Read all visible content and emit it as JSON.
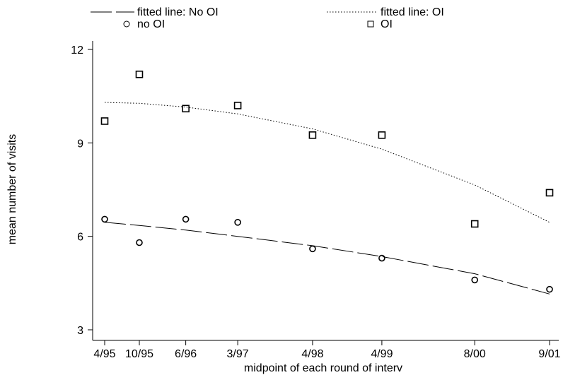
{
  "chart_data": {
    "type": "scatter",
    "xlabel": "midpoint of each round of interv",
    "ylabel": "mean number of visits",
    "ylim": [
      3,
      12
    ],
    "yticks": [
      3,
      6,
      9,
      12
    ],
    "categories": [
      "4/95",
      "10/95",
      "6/96",
      "3/97",
      "4/98",
      "4/99",
      "8/00",
      "9/01"
    ],
    "category_times": [
      1995.29,
      1995.79,
      1996.46,
      1997.21,
      1998.29,
      1999.29,
      2000.63,
      2001.71
    ],
    "grid": false,
    "legend_position": "top",
    "series": [
      {
        "name": "no OI",
        "kind": "points",
        "marker": "circle",
        "values": [
          6.55,
          5.8,
          6.55,
          6.45,
          5.6,
          5.3,
          4.6,
          4.3
        ]
      },
      {
        "name": "OI",
        "kind": "points",
        "marker": "square",
        "values": [
          9.7,
          11.2,
          10.1,
          10.2,
          9.25,
          9.25,
          6.4,
          7.4
        ]
      },
      {
        "name": "fitted line: No OI",
        "kind": "line",
        "dash": "long-dash",
        "values": [
          6.45,
          6.35,
          6.2,
          6.0,
          5.7,
          5.35,
          4.8,
          4.15
        ]
      },
      {
        "name": "fitted line: OI",
        "kind": "line",
        "dash": "dotted",
        "values": [
          10.3,
          10.27,
          10.15,
          9.93,
          9.45,
          8.8,
          7.65,
          6.45
        ]
      }
    ]
  }
}
